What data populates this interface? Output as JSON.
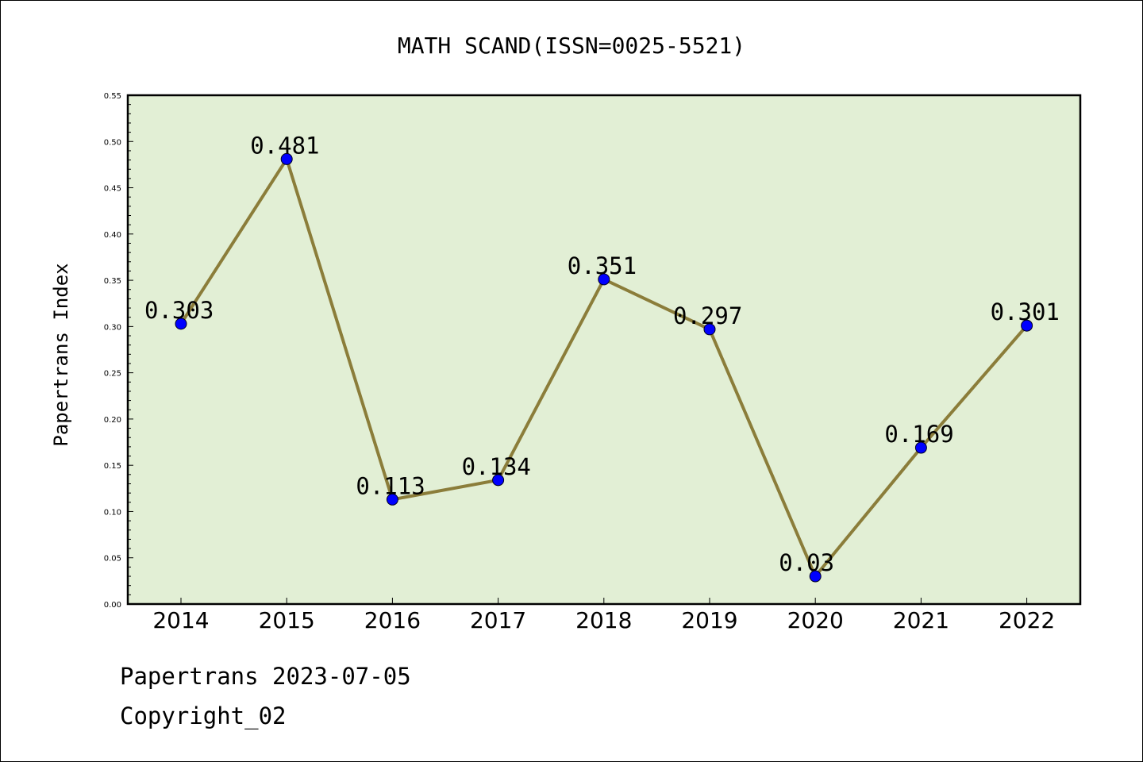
{
  "chart_data": {
    "type": "line",
    "title": "MATH SCAND(ISSN=0025-5521)",
    "xlabel": "",
    "ylabel": "Papertrans Index",
    "categories": [
      "2014",
      "2015",
      "2016",
      "2017",
      "2018",
      "2019",
      "2020",
      "2021",
      "2022"
    ],
    "series": [
      {
        "values": [
          0.303,
          0.481,
          0.113,
          0.134,
          0.351,
          0.297,
          0.03,
          0.169,
          0.301
        ],
        "labels": [
          "0.303",
          "0.481",
          "0.113",
          "0.134",
          "0.351",
          "0.297",
          "0.03",
          "0.169",
          "0.301"
        ]
      }
    ],
    "ylim": [
      0,
      0.55
    ],
    "yticks": [
      "0.00",
      "0.05",
      "0.10",
      "0.15",
      "0.20",
      "0.25",
      "0.30",
      "0.35",
      "0.40",
      "0.45",
      "0.50",
      "0.55"
    ],
    "grid": false,
    "legend": "none",
    "colors": {
      "plot_background": "#e2efd5",
      "line": "#8b7d3a",
      "marker": "#0000ff"
    }
  },
  "footer": {
    "line1": "Papertrans 2023-07-05",
    "line2": "Copyright_02"
  }
}
